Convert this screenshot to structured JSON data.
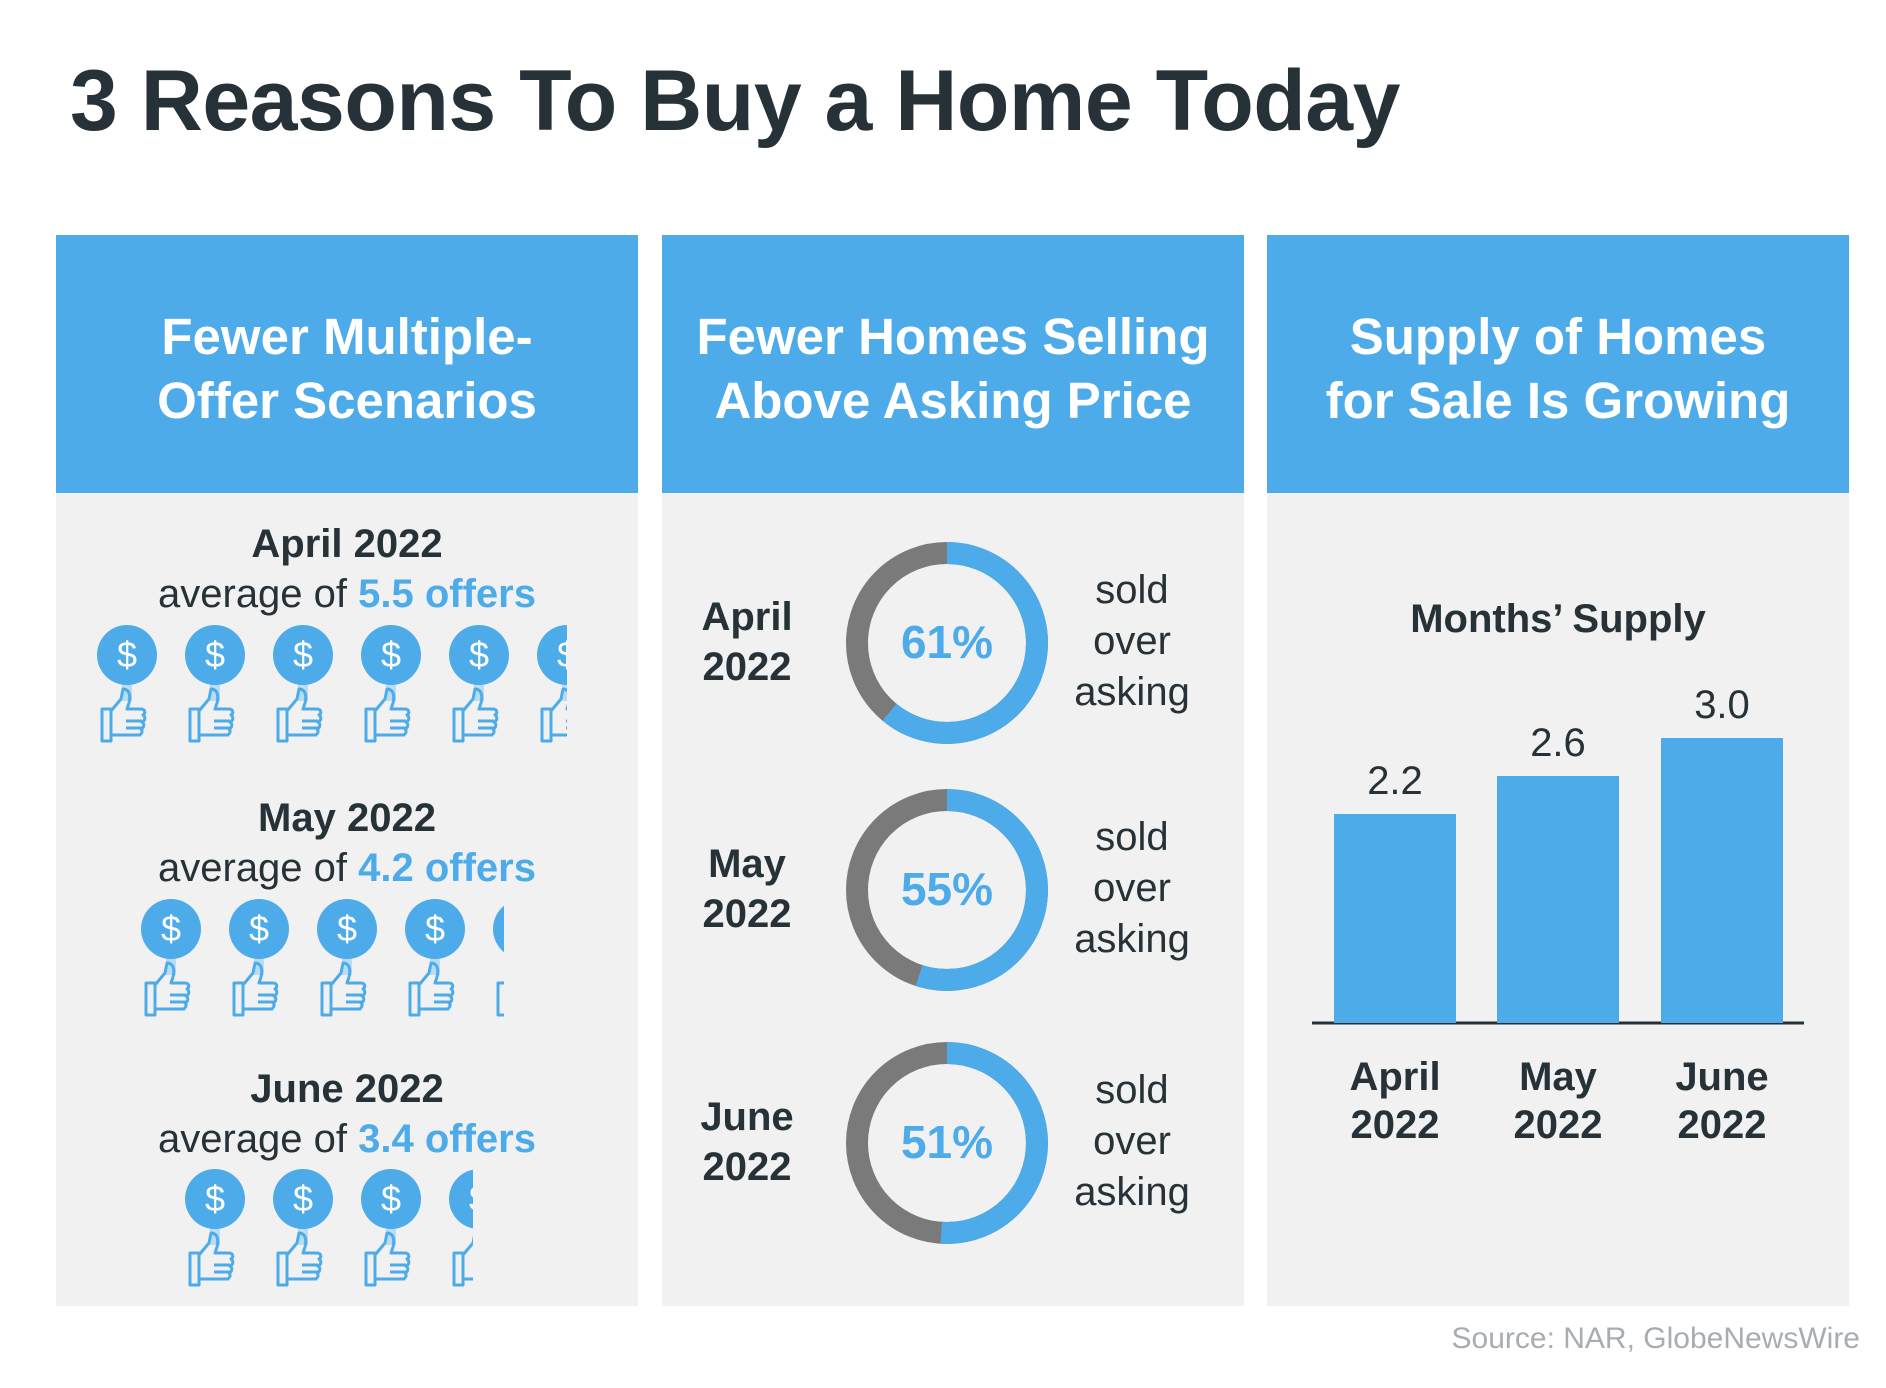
{
  "title": "3 Reasons To Buy a Home Today",
  "source": "Source: NAR, GlobeNewsWire",
  "colors": {
    "accent": "#4eabe9",
    "gray": "#7a7a7a",
    "panel": "#f1f1f1",
    "text": "#263238"
  },
  "panel1": {
    "heading": "Fewer Multiple-\nOffer Scenarios",
    "icon": "dollar-thumbs-up-icon",
    "rows": [
      {
        "month": "April 2022",
        "prefix": "average of ",
        "offers_label": "5.5 offers",
        "offers": 5.5
      },
      {
        "month": "May 2022",
        "prefix": "average of ",
        "offers_label": "4.2 offers",
        "offers": 4.2
      },
      {
        "month": "June 2022",
        "prefix": "average of ",
        "offers_label": "3.4 offers",
        "offers": 3.4
      }
    ]
  },
  "panel2": {
    "heading": "Fewer Homes Selling\nAbove Asking Price",
    "rows": [
      {
        "month": "April\n2022",
        "percent_label": "61%",
        "percent": 61,
        "side": [
          "sold",
          "over",
          "asking"
        ]
      },
      {
        "month": "May\n2022",
        "percent_label": "55%",
        "percent": 55,
        "side": [
          "sold",
          "over",
          "asking"
        ]
      },
      {
        "month": "June\n2022",
        "percent_label": "51%",
        "percent": 51,
        "side": [
          "sold",
          "over",
          "asking"
        ]
      }
    ]
  },
  "panel3": {
    "heading": "Supply of Homes\nfor Sale Is Growing"
  },
  "chart_data": {
    "type": "bar",
    "title": "Months’ Supply",
    "categories": [
      [
        "April",
        "2022"
      ],
      [
        "May",
        "2022"
      ],
      [
        "June",
        "2022"
      ]
    ],
    "values": [
      2.2,
      2.6,
      3.0
    ],
    "value_labels": [
      "2.2",
      "2.6",
      "3.0"
    ],
    "ylim": [
      0,
      3.0
    ],
    "grid": false,
    "color": "#4eabe9"
  }
}
